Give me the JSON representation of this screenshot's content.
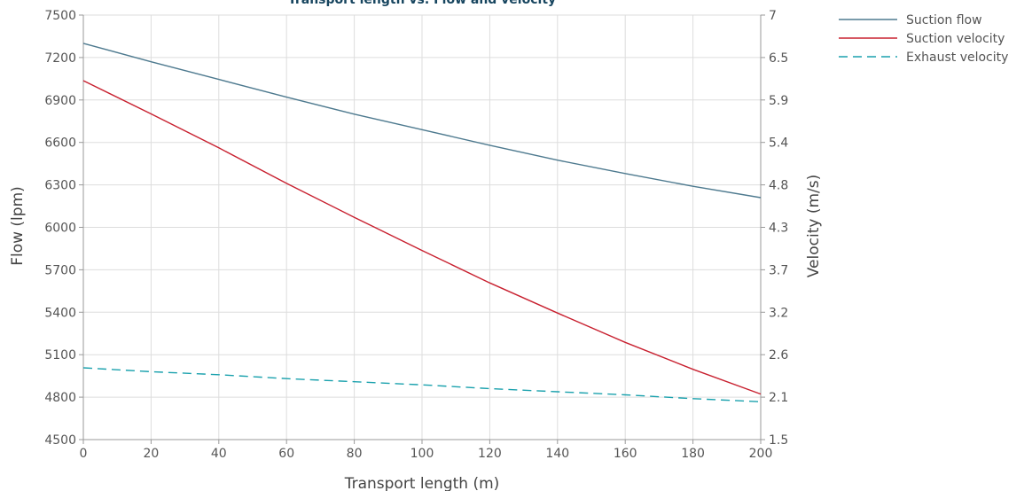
{
  "chart_data": {
    "type": "line",
    "title": "Transport length vs. Flow and velocity",
    "xlabel": "Transport length (m)",
    "ylabel": "Flow (lpm)",
    "y2label": "Velocity (m/s)",
    "xlim": [
      0,
      200
    ],
    "ylim": [
      4500,
      7500
    ],
    "y2lim": [
      1.5,
      7
    ],
    "x_ticks": [
      0,
      20,
      40,
      60,
      80,
      100,
      120,
      140,
      160,
      180,
      200
    ],
    "y_ticks": [
      4500,
      4800,
      5100,
      5400,
      5700,
      6000,
      6300,
      6600,
      6900,
      7200,
      7500
    ],
    "y2_ticks": [
      "1.5",
      "2.1",
      "2.6",
      "3.2",
      "3.7",
      "4.3",
      "4.8",
      "5.4",
      "5.9",
      "6.5",
      "7"
    ],
    "grid": true,
    "legend_position": "top-right",
    "x": [
      0,
      20,
      40,
      60,
      80,
      100,
      120,
      140,
      160,
      180,
      200
    ],
    "series": [
      {
        "name": "Suction flow",
        "axis": "left",
        "color": "#4e7a8f",
        "dash": "solid",
        "values": [
          7300,
          7170,
          7045,
          6920,
          6800,
          6690,
          6580,
          6475,
          6380,
          6290,
          6210
        ]
      },
      {
        "name": "Suction velocity",
        "axis": "right",
        "color": "#c8202f",
        "dash": "solid",
        "values": [
          6.15,
          5.72,
          5.28,
          4.82,
          4.38,
          3.95,
          3.53,
          3.14,
          2.76,
          2.41,
          2.09
        ]
      },
      {
        "name": "Exhaust velocity",
        "axis": "right",
        "color": "#1aa1ad",
        "dash": "dashed",
        "values": [
          2.43,
          2.38,
          2.34,
          2.29,
          2.25,
          2.21,
          2.16,
          2.12,
          2.08,
          2.03,
          1.99
        ]
      }
    ]
  }
}
